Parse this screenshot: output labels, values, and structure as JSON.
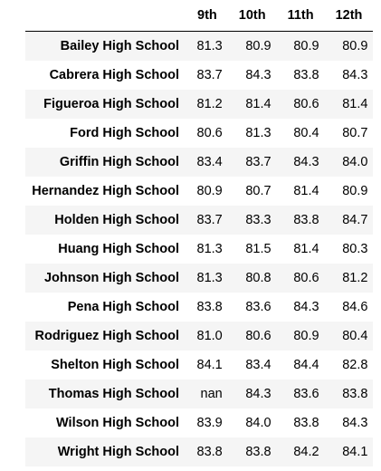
{
  "table": {
    "columns": [
      "9th",
      "10th",
      "11th",
      "12th"
    ],
    "rows": [
      {
        "school": "Bailey High School",
        "values": [
          "81.3",
          "80.9",
          "80.9",
          "80.9"
        ]
      },
      {
        "school": "Cabrera High School",
        "values": [
          "83.7",
          "84.3",
          "83.8",
          "84.3"
        ]
      },
      {
        "school": "Figueroa High School",
        "values": [
          "81.2",
          "81.4",
          "80.6",
          "81.4"
        ]
      },
      {
        "school": "Ford High School",
        "values": [
          "80.6",
          "81.3",
          "80.4",
          "80.7"
        ]
      },
      {
        "school": "Griffin High School",
        "values": [
          "83.4",
          "83.7",
          "84.3",
          "84.0"
        ]
      },
      {
        "school": "Hernandez High School",
        "values": [
          "80.9",
          "80.7",
          "81.4",
          "80.9"
        ]
      },
      {
        "school": "Holden High School",
        "values": [
          "83.7",
          "83.3",
          "83.8",
          "84.7"
        ]
      },
      {
        "school": "Huang High School",
        "values": [
          "81.3",
          "81.5",
          "81.4",
          "80.3"
        ]
      },
      {
        "school": "Johnson High School",
        "values": [
          "81.3",
          "80.8",
          "80.6",
          "81.2"
        ]
      },
      {
        "school": "Pena High School",
        "values": [
          "83.8",
          "83.6",
          "84.3",
          "84.6"
        ]
      },
      {
        "school": "Rodriguez High School",
        "values": [
          "81.0",
          "80.6",
          "80.9",
          "80.4"
        ]
      },
      {
        "school": "Shelton High School",
        "values": [
          "84.1",
          "83.4",
          "84.4",
          "82.8"
        ]
      },
      {
        "school": "Thomas High School",
        "values": [
          "nan",
          "84.3",
          "83.6",
          "83.8"
        ]
      },
      {
        "school": "Wilson High School",
        "values": [
          "83.9",
          "84.0",
          "83.8",
          "84.3"
        ]
      },
      {
        "school": "Wright High School",
        "values": [
          "83.8",
          "83.8",
          "84.2",
          "84.1"
        ]
      }
    ]
  }
}
